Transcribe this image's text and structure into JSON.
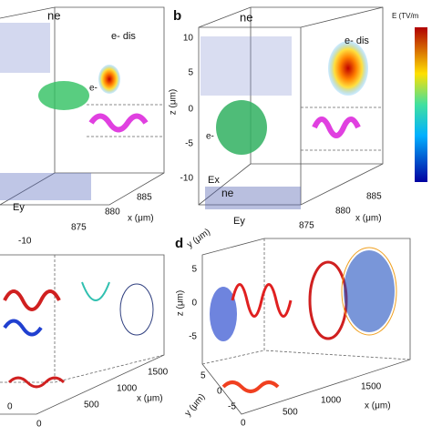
{
  "panels": {
    "a": {
      "ne": "ne",
      "edis": "e- dis",
      "e": "e-",
      "ey": "Ey",
      "ytick": "-10",
      "xticks": [
        "875",
        "880",
        "885"
      ],
      "xlabel": "x (μm)"
    },
    "b": {
      "label": "b",
      "ne": "ne",
      "edis": "e- dis",
      "colorbar": "E (TV/m",
      "zticks": [
        "10",
        "5",
        "0",
        "-5",
        "-10"
      ],
      "zlabel": "z (μm)",
      "e": "e-",
      "ex": "Ex",
      "ne2": "ne",
      "ey": "Ey",
      "ylabel": "y (μm)",
      "xticks": [
        "875",
        "880",
        "885"
      ],
      "xlabel": "x (μm)"
    },
    "c": {
      "ytick": "0",
      "xticks": [
        "0",
        "500",
        "1000",
        "1500"
      ],
      "xlabel": "x (μm)"
    },
    "d": {
      "label": "d",
      "zticks": [
        "5",
        "0",
        "-5"
      ],
      "zlabel": "z (μm)",
      "yticks": [
        "5",
        "0",
        "-5"
      ],
      "ylabel": "y (μm)",
      "xticks": [
        "0",
        "500",
        "1000",
        "1500"
      ],
      "xlabel": "x (μm)"
    }
  }
}
